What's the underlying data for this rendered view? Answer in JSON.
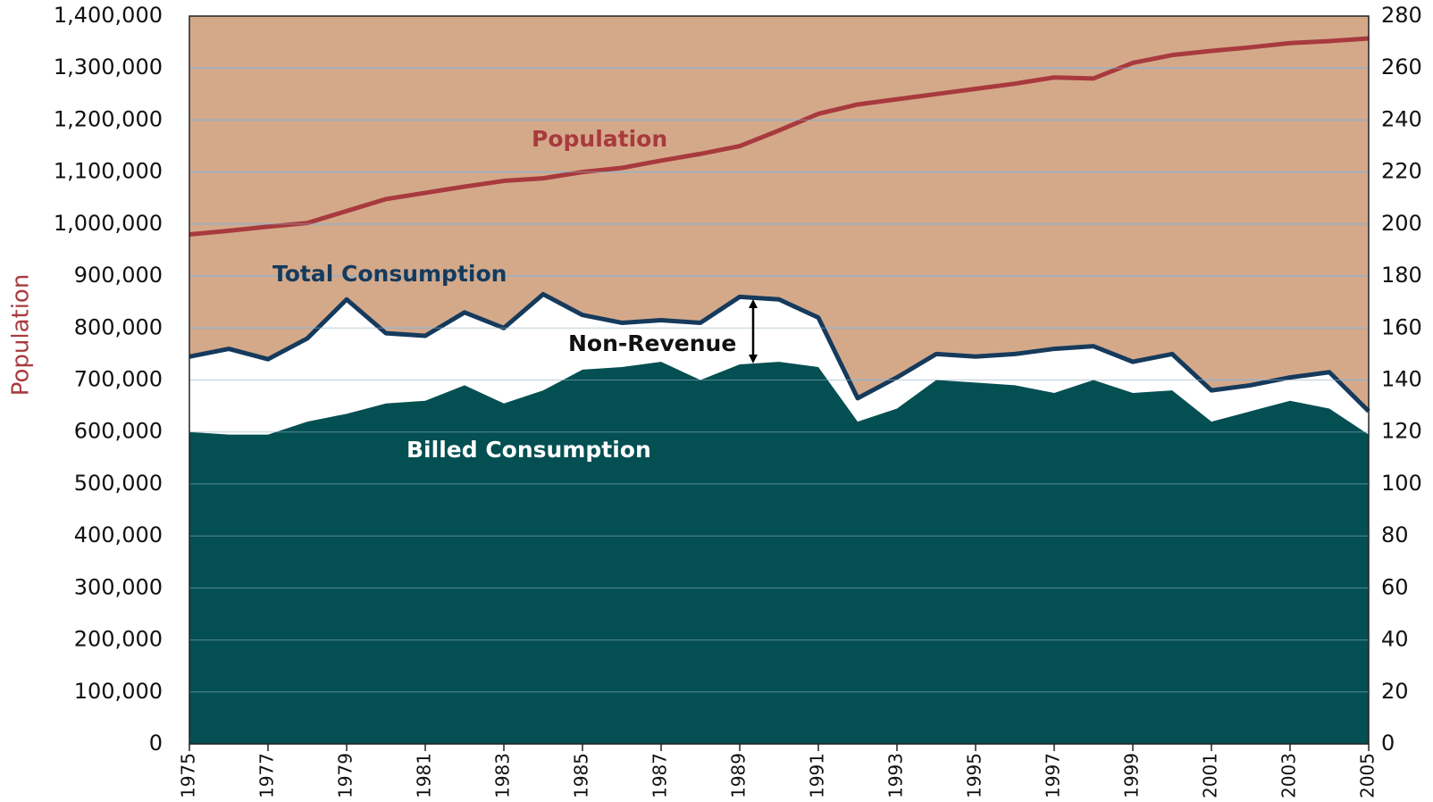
{
  "chart_data": {
    "type": "line-area",
    "y_label": "Population",
    "annotation": "Non-Revenue",
    "x": [
      1975,
      1976,
      1977,
      1978,
      1979,
      1980,
      1981,
      1982,
      1983,
      1984,
      1985,
      1986,
      1987,
      1988,
      1989,
      1990,
      1991,
      1992,
      1993,
      1994,
      1995,
      1996,
      1997,
      1998,
      1999,
      2000,
      2001,
      2002,
      2003,
      2004,
      2005
    ],
    "xlim": [
      1975,
      2005
    ],
    "xticks": [
      1975,
      1977,
      1979,
      1981,
      1983,
      1985,
      1987,
      1989,
      1991,
      1993,
      1995,
      1997,
      1999,
      2001,
      2003,
      2005
    ],
    "ylim": [
      0,
      1400000
    ],
    "yticks": [
      0,
      {
        "value": 100000,
        "label": "100,000"
      },
      {
        "value": 200000,
        "label": "200,000"
      },
      {
        "value": 300000,
        "label": "300,000"
      },
      {
        "value": 400000,
        "label": "400,000"
      },
      {
        "value": 500000,
        "label": "500,000"
      },
      {
        "value": 600000,
        "label": "600,000"
      },
      {
        "value": 700000,
        "label": "700,000"
      },
      {
        "value": 800000,
        "label": "800,000"
      },
      {
        "value": 900000,
        "label": "900,000"
      },
      {
        "value": 1000000,
        "label": "1,000,000"
      },
      {
        "value": 1100000,
        "label": "1,100,000"
      },
      {
        "value": 1200000,
        "label": "1,200,000"
      },
      {
        "value": 1300000,
        "label": "1,300,000"
      },
      {
        "value": 1400000,
        "label": "1,400,000"
      }
    ],
    "y2lim": [
      0,
      280
    ],
    "y2ticks": [
      0,
      20,
      40,
      60,
      80,
      100,
      120,
      140,
      160,
      180,
      200,
      220,
      240,
      260,
      280
    ],
    "grid": true,
    "background": "#d4a98a",
    "series": [
      {
        "name": "Population",
        "color": "#a83a3e",
        "mark": "line",
        "axis": "y",
        "values": [
          980000,
          987000,
          995000,
          1002000,
          1025000,
          1048000,
          1060000,
          1072000,
          1083000,
          1088000,
          1100000,
          1108000,
          1122000,
          1135000,
          1150000,
          1180000,
          1212000,
          1230000,
          1240000,
          1250000,
          1260000,
          1270000,
          1282000,
          1280000,
          1310000,
          1325000,
          1333000,
          1340000,
          1348000,
          1352000,
          1357000
        ]
      },
      {
        "name": "Total Consumption",
        "color": "#153a5c",
        "fill": "#ffffff",
        "mark": "area-line",
        "axis": "y2",
        "values": [
          149,
          152,
          148,
          156,
          171,
          158,
          157,
          166,
          160,
          173,
          165,
          162,
          163,
          162,
          172,
          171,
          164,
          133,
          141,
          150,
          149,
          150,
          152,
          153,
          147,
          150,
          136,
          138,
          141,
          143,
          128
        ]
      },
      {
        "name": "Billed Consumption",
        "color": "#034f52",
        "fill": "#034f52",
        "mark": "area",
        "axis": "y2",
        "values": [
          120,
          119,
          119,
          124,
          127,
          131,
          132,
          138,
          131,
          136,
          144,
          145,
          147,
          140,
          146,
          147,
          145,
          124,
          129,
          140,
          139,
          138,
          135,
          140,
          135,
          136,
          124,
          128,
          132,
          129,
          119
        ]
      }
    ]
  }
}
